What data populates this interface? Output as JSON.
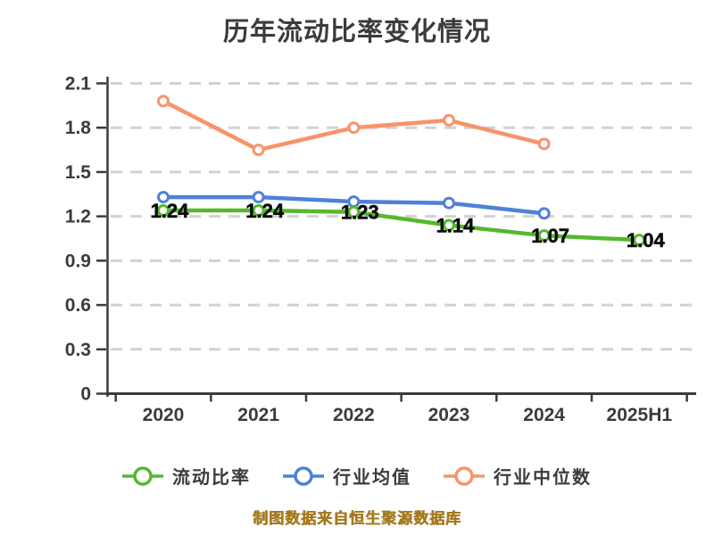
{
  "title": "历年流动比率变化情况",
  "footer": "制图数据来自恒生聚源数据库",
  "colors": {
    "current-ratio": "#55b82d",
    "industry-avg": "#4e81d8",
    "industry-median": "#f8936a",
    "grid": "#d2d2d2",
    "axis": "#3b3b3b",
    "tick_text": "#3b3b3b",
    "data_label": "#0c0c0c",
    "marker_fill": "#ffffff",
    "title_text": "#3b3b3b",
    "footer_text": "#a5791f"
  },
  "chart_data": {
    "type": "line",
    "title": "历年流动比率变化情况",
    "categories": [
      "2020",
      "2021",
      "2022",
      "2023",
      "2024",
      "2025H1"
    ],
    "series": [
      {
        "name": "流动比率",
        "key": "current-ratio",
        "values": [
          1.24,
          1.24,
          1.23,
          1.14,
          1.07,
          1.04
        ],
        "labels": [
          "1.24",
          "1.24",
          "1.23",
          "1.14",
          "1.07",
          "1.04"
        ]
      },
      {
        "name": "行业均值",
        "key": "industry-avg",
        "values": [
          1.33,
          1.33,
          1.3,
          1.29,
          1.22,
          null
        ]
      },
      {
        "name": "行业中位数",
        "key": "industry-median",
        "values": [
          1.98,
          1.65,
          1.8,
          1.85,
          1.69,
          null
        ]
      }
    ],
    "y_ticks": [
      "0",
      "0.3",
      "0.6",
      "0.9",
      "1.2",
      "1.5",
      "1.8",
      "2.1"
    ],
    "ylim": [
      0,
      2.1
    ],
    "grid": "dashed-horizontal",
    "legend_position": "bottom",
    "xlabel": "",
    "ylabel": ""
  }
}
